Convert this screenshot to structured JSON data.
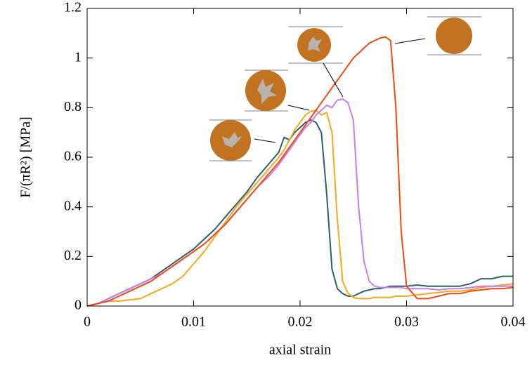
{
  "chart_data": {
    "type": "line",
    "x_label": "axial strain",
    "y_label": "F/(πR²) [MPa]",
    "xlim": [
      0,
      0.04
    ],
    "ylim": [
      0,
      1.2
    ],
    "xticks": [
      0,
      0.01,
      0.02,
      0.03,
      0.04
    ],
    "yticks": [
      0,
      0.2,
      0.4,
      0.6,
      0.8,
      1,
      1.2
    ],
    "x": [
      0,
      0.001,
      0.002,
      0.003,
      0.004,
      0.005,
      0.006,
      0.007,
      0.008,
      0.009,
      0.01,
      0.011,
      0.012,
      0.013,
      0.014,
      0.015,
      0.016,
      0.017,
      0.018,
      0.0185,
      0.019,
      0.0195,
      0.02,
      0.0205,
      0.021,
      0.0215,
      0.022,
      0.0225,
      0.023,
      0.0235,
      0.024,
      0.0245,
      0.025,
      0.0255,
      0.026,
      0.0265,
      0.027,
      0.0275,
      0.028,
      0.0285,
      0.029,
      0.0295,
      0.03,
      0.031,
      0.032,
      0.033,
      0.034,
      0.035,
      0.036,
      0.037,
      0.038,
      0.039,
      0.04
    ],
    "series": [
      {
        "color": "#2e5e6e",
        "values": [
          0,
          0.01,
          0.03,
          0.05,
          0.07,
          0.09,
          0.11,
          0.14,
          0.17,
          0.2,
          0.23,
          0.27,
          0.31,
          0.36,
          0.41,
          0.46,
          0.52,
          0.57,
          0.62,
          0.68,
          0.67,
          0.7,
          0.72,
          0.74,
          0.75,
          0.74,
          0.7,
          0.45,
          0.15,
          0.07,
          0.05,
          0.04,
          0.04,
          0.05,
          0.06,
          0.065,
          0.07,
          0.07,
          0.075,
          0.08,
          0.08,
          0.08,
          0.08,
          0.085,
          0.08,
          0.08,
          0.08,
          0.08,
          0.09,
          0.11,
          0.11,
          0.12,
          0.12
        ]
      },
      {
        "color": "#f5a81c",
        "values": [
          0,
          0.01,
          0.02,
          0.02,
          0.025,
          0.03,
          0.05,
          0.07,
          0.09,
          0.12,
          0.17,
          0.22,
          0.28,
          0.34,
          0.4,
          0.45,
          0.5,
          0.55,
          0.6,
          0.63,
          0.67,
          0.71,
          0.74,
          0.77,
          0.785,
          0.79,
          0.77,
          0.78,
          0.7,
          0.35,
          0.1,
          0.05,
          0.035,
          0.03,
          0.03,
          0.03,
          0.035,
          0.035,
          0.035,
          0.035,
          0.04,
          0.04,
          0.04,
          0.045,
          0.05,
          0.055,
          0.06,
          0.06,
          0.065,
          0.075,
          0.08,
          0.085,
          0.09
        ]
      },
      {
        "color": "#c77ef2",
        "values": [
          0,
          0.01,
          0.03,
          0.05,
          0.07,
          0.09,
          0.11,
          0.13,
          0.16,
          0.19,
          0.22,
          0.25,
          0.29,
          0.33,
          0.38,
          0.43,
          0.48,
          0.52,
          0.57,
          0.6,
          0.63,
          0.66,
          0.69,
          0.72,
          0.74,
          0.77,
          0.79,
          0.81,
          0.8,
          0.83,
          0.835,
          0.82,
          0.75,
          0.4,
          0.18,
          0.1,
          0.08,
          0.075,
          0.075,
          0.075,
          0.075,
          0.075,
          0.07,
          0.07,
          0.07,
          0.065,
          0.07,
          0.07,
          0.075,
          0.08,
          0.08,
          0.08,
          0.08
        ]
      },
      {
        "color": "#f04a12",
        "values": [
          0,
          0.01,
          0.02,
          0.04,
          0.06,
          0.08,
          0.1,
          0.13,
          0.16,
          0.19,
          0.22,
          0.25,
          0.29,
          0.33,
          0.38,
          0.43,
          0.48,
          0.53,
          0.58,
          0.61,
          0.64,
          0.67,
          0.7,
          0.73,
          0.76,
          0.79,
          0.82,
          0.85,
          0.88,
          0.91,
          0.94,
          0.97,
          1.0,
          1.02,
          1.04,
          1.06,
          1.07,
          1.08,
          1.085,
          1.07,
          0.8,
          0.3,
          0.08,
          0.03,
          0.03,
          0.04,
          0.05,
          0.05,
          0.06,
          0.065,
          0.07,
          0.07,
          0.075
        ]
      }
    ]
  }
}
